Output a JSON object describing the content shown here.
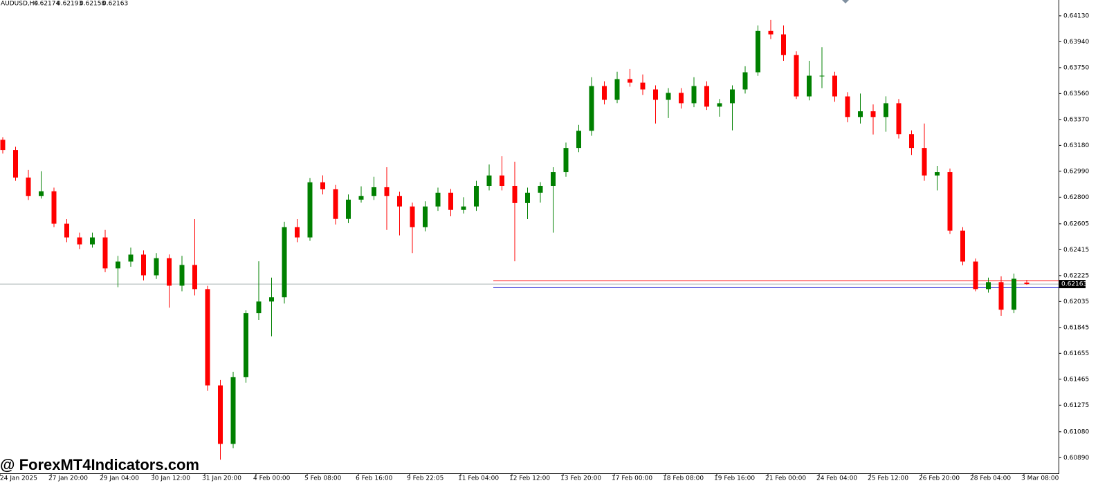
{
  "chart_data": {
    "type": "candlestick",
    "symbol": "AUDUSD,H4",
    "watermark": "@ ForexMT4Indicators.com",
    "up_color": "#008000",
    "down_color": "#ff0000",
    "open": [
      0.63221,
      0.63146,
      0.62944,
      0.62808,
      0.62843,
      0.62606,
      0.62505,
      0.62454,
      0.62505,
      0.62278,
      0.62328,
      0.62379,
      0.62227,
      0.62353,
      0.62151,
      0.62303,
      0.62126,
      0.6142,
      0.60991,
      0.6148,
      0.6195,
      0.62035,
      0.62066,
      0.6258,
      0.62505,
      0.62909,
      0.62858,
      0.62641,
      0.62782,
      0.62808,
      0.62873,
      0.62808,
      0.62732,
      0.6258,
      0.62732,
      0.62833,
      0.62707,
      0.62732,
      0.62883,
      0.62959,
      0.62883,
      0.62757,
      0.62833,
      0.62883,
      0.62984,
      0.63161,
      0.63287,
      0.63615,
      0.63514,
      0.63666,
      0.6364,
      0.6359,
      0.63514,
      0.63565,
      0.63489,
      0.63615,
      0.63464,
      0.63489,
      0.6359,
      0.63716,
      0.64019,
      0.63994,
      0.63842,
      0.63539,
      0.63691,
      0.63691,
      0.63539,
      0.63388,
      0.6343,
      0.63388,
      0.63489,
      0.63262,
      0.63161,
      0.62959,
      0.62984,
      0.62555,
      0.62328,
      0.62126,
      0.62177,
      0.61975,
      0.62174
    ],
    "high": [
      0.6324,
      0.6317,
      0.63,
      0.6299,
      0.6287,
      0.6264,
      0.6254,
      0.6254,
      0.6256,
      0.6237,
      0.6243,
      0.6241,
      0.6239,
      0.6238,
      0.6237,
      0.6264,
      0.6215,
      0.6146,
      0.6152,
      0.6197,
      0.6233,
      0.6221,
      0.6262,
      0.6264,
      0.6294,
      0.6296,
      0.6289,
      0.6282,
      0.6288,
      0.6295,
      0.6302,
      0.6284,
      0.6276,
      0.6277,
      0.6287,
      0.6286,
      0.628,
      0.6292,
      0.6304,
      0.631,
      0.6306,
      0.6287,
      0.6291,
      0.6302,
      0.632,
      0.6333,
      0.6368,
      0.6365,
      0.6372,
      0.6374,
      0.637,
      0.6362,
      0.636,
      0.636,
      0.6368,
      0.6365,
      0.6352,
      0.6362,
      0.6376,
      0.6406,
      0.641,
      0.6406,
      0.6387,
      0.638,
      0.639,
      0.6372,
      0.6357,
      0.6356,
      0.6348,
      0.6354,
      0.6352,
      0.6329,
      0.6334,
      0.6303,
      0.6301,
      0.6258,
      0.6235,
      0.6221,
      0.6222,
      0.6224,
      0.62193
    ],
    "low": [
      0.6312,
      0.6292,
      0.6278,
      0.6279,
      0.6258,
      0.6247,
      0.6242,
      0.6243,
      0.6225,
      0.6214,
      0.6229,
      0.6219,
      0.622,
      0.6199,
      0.6211,
      0.6208,
      0.6138,
      0.60875,
      0.6096,
      0.6144,
      0.619,
      0.6178,
      0.6202,
      0.6247,
      0.6248,
      0.6282,
      0.626,
      0.6261,
      0.6276,
      0.6278,
      0.6256,
      0.6252,
      0.6239,
      0.6255,
      0.627,
      0.6266,
      0.6268,
      0.627,
      0.6285,
      0.6285,
      0.6233,
      0.6264,
      0.6276,
      0.6254,
      0.6295,
      0.6313,
      0.6325,
      0.6348,
      0.6349,
      0.6361,
      0.6355,
      0.6334,
      0.6338,
      0.6345,
      0.6346,
      0.6344,
      0.6339,
      0.6329,
      0.6356,
      0.6369,
      0.6396,
      0.638,
      0.6352,
      0.6351,
      0.636,
      0.635,
      0.6335,
      0.6334,
      0.6326,
      0.6328,
      0.6323,
      0.6311,
      0.6292,
      0.6285,
      0.6253,
      0.623,
      0.6211,
      0.621,
      0.6193,
      0.6195,
      0.62158
    ],
    "close": [
      0.63146,
      0.62944,
      0.62808,
      0.62843,
      0.62606,
      0.62505,
      0.62454,
      0.62505,
      0.62278,
      0.62328,
      0.62379,
      0.62227,
      0.62353,
      0.62151,
      0.62303,
      0.62126,
      0.6142,
      0.60991,
      0.6148,
      0.6195,
      0.62035,
      0.62066,
      0.6258,
      0.62505,
      0.62909,
      0.62858,
      0.62641,
      0.62782,
      0.62808,
      0.62873,
      0.62808,
      0.62732,
      0.6258,
      0.62732,
      0.62833,
      0.62707,
      0.62732,
      0.62883,
      0.62959,
      0.62883,
      0.62757,
      0.62833,
      0.62883,
      0.62984,
      0.63161,
      0.63287,
      0.63615,
      0.63514,
      0.63666,
      0.6364,
      0.6359,
      0.63514,
      0.63565,
      0.63489,
      0.63615,
      0.63464,
      0.63489,
      0.6359,
      0.63716,
      0.64019,
      0.63994,
      0.63842,
      0.63539,
      0.63691,
      0.63691,
      0.63539,
      0.63388,
      0.6343,
      0.63388,
      0.63489,
      0.63262,
      0.63161,
      0.62959,
      0.62984,
      0.62555,
      0.62328,
      0.62126,
      0.62177,
      0.61975,
      0.62202,
      0.62163
    ],
    "levels": [
      {
        "value": 0.62187,
        "color": "#ff0000"
      },
      {
        "value": 0.62136,
        "color": "#0000cd"
      }
    ],
    "x_labels": [
      "24 Jan 2025",
      "27 Jan 20:00",
      "29 Jan 04:00",
      "30 Jan 12:00",
      "31 Jan 20:00",
      "4 Feb 00:00",
      "5 Feb 08:00",
      "6 Feb 16:00",
      "9 Feb 22:05",
      "11 Feb 04:00",
      "12 Feb 12:00",
      "13 Feb 20:00",
      "17 Feb 00:00",
      "18 Feb 08:00",
      "19 Feb 16:00",
      "21 Feb 00:00",
      "24 Feb 04:00",
      "25 Feb 12:00",
      "26 Feb 20:00",
      "28 Feb 04:00",
      "3 Mar 08:00"
    ],
    "ylim": [
      0.60775,
      0.64246
    ],
    "yticks": [
      {
        "value": 0.6413,
        "label": "0.64130"
      },
      {
        "value": 0.6394,
        "label": "0.63940"
      },
      {
        "value": 0.6375,
        "label": "0.63750"
      },
      {
        "value": 0.6356,
        "label": "0.63560"
      },
      {
        "value": 0.6337,
        "label": "0.63370"
      },
      {
        "value": 0.6318,
        "label": "0.63180"
      },
      {
        "value": 0.6299,
        "label": "0.62990"
      },
      {
        "value": 0.628,
        "label": "0.62800"
      },
      0.62605,
      0.62415,
      0.62225,
      0.62035,
      0.61845,
      0.61655,
      0.61465,
      0.61275,
      {
        "value": 0.6108,
        "label": "0.61080"
      },
      {
        "value": 0.6089,
        "label": "0.60890"
      }
    ]
  }
}
